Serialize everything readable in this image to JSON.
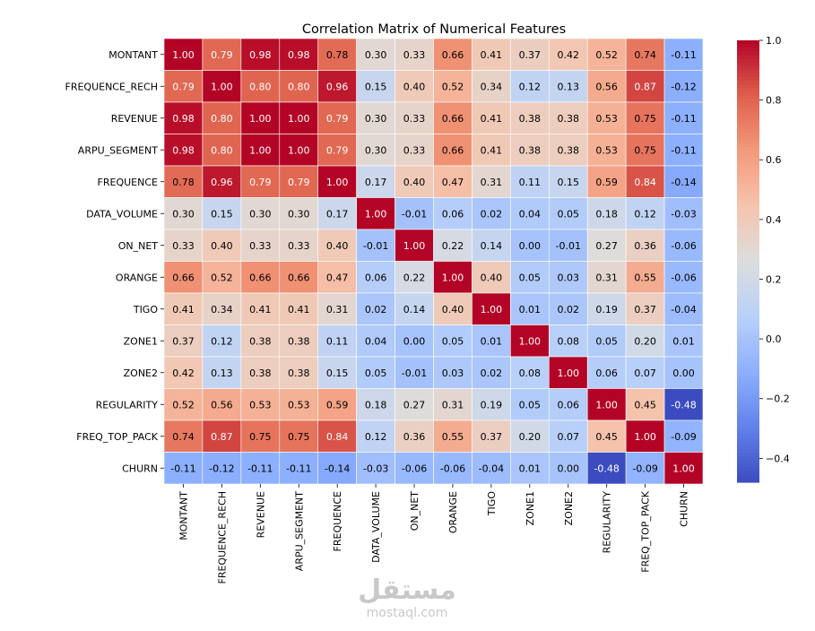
{
  "chart_data": {
    "type": "heatmap",
    "title": "Correlation Matrix of Numerical Features",
    "labels": [
      "MONTANT",
      "FREQUENCE_RECH",
      "REVENUE",
      "ARPU_SEGMENT",
      "FREQUENCE",
      "DATA_VOLUME",
      "ON_NET",
      "ORANGE",
      "TIGO",
      "ZONE1",
      "ZONE2",
      "REGULARITY",
      "FREQ_TOP_PACK",
      "CHURN"
    ],
    "matrix": [
      [
        1.0,
        0.79,
        0.98,
        0.98,
        0.78,
        0.3,
        0.33,
        0.66,
        0.41,
        0.37,
        0.42,
        0.52,
        0.74,
        -0.11
      ],
      [
        0.79,
        1.0,
        0.8,
        0.8,
        0.96,
        0.15,
        0.4,
        0.52,
        0.34,
        0.12,
        0.13,
        0.56,
        0.87,
        -0.12
      ],
      [
        0.98,
        0.8,
        1.0,
        1.0,
        0.79,
        0.3,
        0.33,
        0.66,
        0.41,
        0.38,
        0.38,
        0.53,
        0.75,
        -0.11
      ],
      [
        0.98,
        0.8,
        1.0,
        1.0,
        0.79,
        0.3,
        0.33,
        0.66,
        0.41,
        0.38,
        0.38,
        0.53,
        0.75,
        -0.11
      ],
      [
        0.78,
        0.96,
        0.79,
        0.79,
        1.0,
        0.17,
        0.4,
        0.47,
        0.31,
        0.11,
        0.15,
        0.59,
        0.84,
        -0.14
      ],
      [
        0.3,
        0.15,
        0.3,
        0.3,
        0.17,
        1.0,
        -0.01,
        0.06,
        0.02,
        0.04,
        0.05,
        0.18,
        0.12,
        -0.03
      ],
      [
        0.33,
        0.4,
        0.33,
        0.33,
        0.4,
        -0.01,
        1.0,
        0.22,
        0.14,
        0.0,
        -0.01,
        0.27,
        0.36,
        -0.06
      ],
      [
        0.66,
        0.52,
        0.66,
        0.66,
        0.47,
        0.06,
        0.22,
        1.0,
        0.4,
        0.05,
        0.03,
        0.31,
        0.55,
        -0.06
      ],
      [
        0.41,
        0.34,
        0.41,
        0.41,
        0.31,
        0.02,
        0.14,
        0.4,
        1.0,
        0.01,
        0.02,
        0.19,
        0.37,
        -0.04
      ],
      [
        0.37,
        0.12,
        0.38,
        0.38,
        0.11,
        0.04,
        0.0,
        0.05,
        0.01,
        1.0,
        0.08,
        0.05,
        0.2,
        0.01
      ],
      [
        0.42,
        0.13,
        0.38,
        0.38,
        0.15,
        0.05,
        -0.01,
        0.03,
        0.02,
        0.08,
        1.0,
        0.06,
        0.07,
        0.0
      ],
      [
        0.52,
        0.56,
        0.53,
        0.53,
        0.59,
        0.18,
        0.27,
        0.31,
        0.19,
        0.05,
        0.06,
        1.0,
        0.45,
        -0.48
      ],
      [
        0.74,
        0.87,
        0.75,
        0.75,
        0.84,
        0.12,
        0.36,
        0.55,
        0.37,
        0.2,
        0.07,
        0.45,
        1.0,
        -0.09
      ],
      [
        -0.11,
        -0.12,
        -0.11,
        -0.11,
        -0.14,
        -0.03,
        -0.06,
        -0.06,
        -0.04,
        0.01,
        0.0,
        -0.48,
        -0.09,
        1.0
      ]
    ],
    "colorbar": {
      "colormap": "coolwarm",
      "vmin": -0.48,
      "vmax": 1.0,
      "ticks": [
        -0.4,
        -0.2,
        0.0,
        0.2,
        0.4,
        0.6,
        0.8,
        1.0
      ],
      "tick_labels": [
        "−0.4",
        "−0.2",
        "0.0",
        "0.2",
        "0.4",
        "0.6",
        "0.8",
        "1.0"
      ]
    },
    "annotation_format": "0.00",
    "grid": false
  },
  "watermark": {
    "logo_text": "مستقل",
    "site_text": "mostaql.com"
  },
  "colors": {
    "cell_border": "#ffffff",
    "text_dark": "#000000",
    "text_light": "#ffffff",
    "watermark": "#c8c8c8"
  }
}
